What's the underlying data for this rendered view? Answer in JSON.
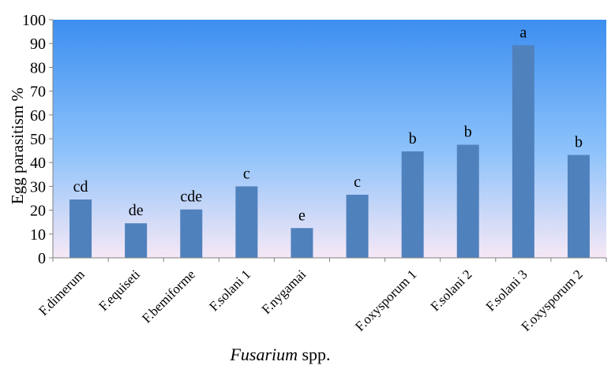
{
  "chart_data": {
    "type": "bar",
    "categories": [
      "F.dimerum",
      "F.equiseti",
      "F.bemiforme",
      "F.solani 1",
      "F.nygamai",
      "",
      "F.oxysporum 1",
      "F.solani 2",
      "F.solani 3",
      "F.oxysporum 2"
    ],
    "values": [
      24.5,
      14.5,
      20.3,
      30,
      12.5,
      26.5,
      44.7,
      47.5,
      89.3,
      43.2
    ],
    "data_labels": [
      "cd",
      "de",
      "cde",
      "c",
      "e",
      "c",
      "b",
      "b",
      "a",
      "b"
    ],
    "ylabel": "Egg parasitism %",
    "xlabel_italic": "Fusarium",
    "xlabel_rest": " spp.",
    "ylim": [
      0,
      100
    ],
    "yticks": [
      0,
      10,
      20,
      30,
      40,
      50,
      60,
      70,
      80,
      90,
      100
    ],
    "bar_color": "#4f81bd",
    "plot_background_top": "#3c8ef0",
    "plot_background_bottom": "#f6e8f6",
    "grid": false,
    "legend": "none"
  }
}
